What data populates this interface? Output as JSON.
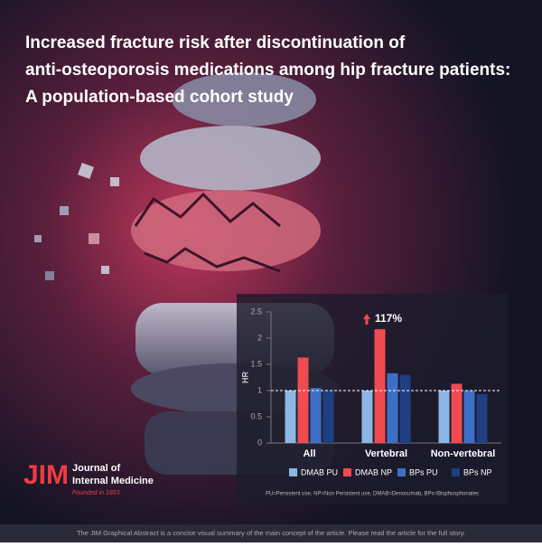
{
  "title_lines": [
    "Increased fracture risk after discontinuation of",
    "anti-osteoporosis medications among hip fracture patients:",
    "A population-based cohort study"
  ],
  "chart_data": {
    "type": "bar",
    "y_label": "HR",
    "categories": [
      "All",
      "Vertebral",
      "Non-vertebral"
    ],
    "series": [
      {
        "name": "DMAB PU",
        "color": "#8db6e6",
        "values": [
          1.0,
          1.0,
          1.0
        ]
      },
      {
        "name": "DMAB NP",
        "color": "#ef4b50",
        "values": [
          1.63,
          2.17,
          1.13
        ]
      },
      {
        "name": "BPs PU",
        "color": "#3d6fc6",
        "values": [
          1.05,
          1.33,
          1.0
        ]
      },
      {
        "name": "BPs NP",
        "color": "#1e3f82",
        "values": [
          1.0,
          1.3,
          0.93
        ]
      }
    ],
    "ylim": [
      0,
      2.5
    ],
    "yticks": [
      0,
      0.5,
      1,
      1.5,
      2,
      2.5
    ],
    "reference_line": 1,
    "annotation": "117%",
    "note": "PU=Persistent use, NP=Non Persistent use, DMAB=Denosumab, BPs=Bisphosphonates"
  },
  "journal": {
    "logo": "JIM",
    "name_lines": [
      "Journal of",
      "Internal Medicine"
    ],
    "founded": "Founded in 1863"
  },
  "footer": "The JIM Graphical Abstract is a concise visual summary of the main concept of the article. Please read the article for the full story."
}
